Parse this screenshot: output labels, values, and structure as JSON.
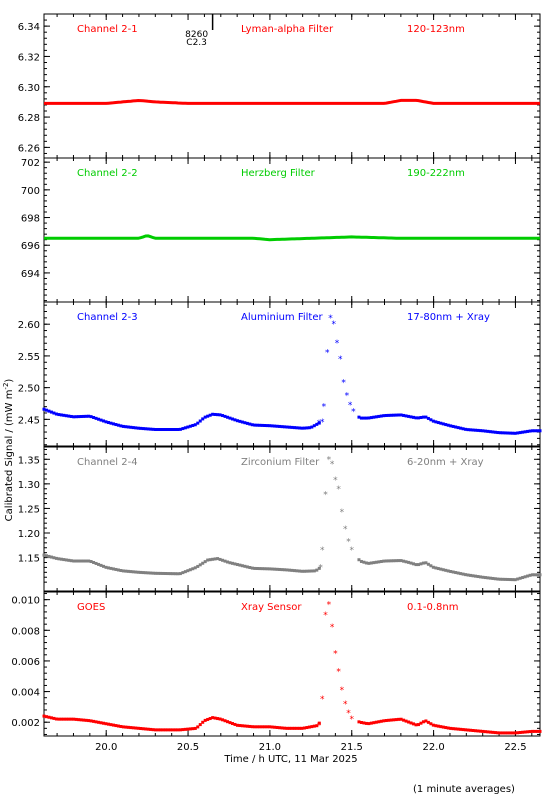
{
  "chart_data": {
    "type": "scatter",
    "xlabel": "Time / h UTC, 11 Mar 2025",
    "ylabel": "Calibrated Signal / (mW m",
    "ylabel_sup": "-2",
    "ylabel_close": ")",
    "footnote": "(1 minute averages)",
    "xlim": [
      19.62,
      22.65
    ],
    "xticks": [
      "20.0",
      "20.5",
      "21.0",
      "21.5",
      "22.0",
      "22.5"
    ],
    "xtick_values": [
      20.0,
      20.5,
      21.0,
      21.5,
      22.0,
      22.5
    ],
    "event_marker": {
      "x": 20.65,
      "line1": "8260",
      "line2": "C2.3"
    },
    "panels": [
      {
        "channel": "Channel 2-1",
        "filter": "Lyman-alpha Filter",
        "band": "120-123nm",
        "color": "#ff0000",
        "ylim": [
          6.253,
          6.348
        ],
        "yticks": [
          "6.26",
          "6.28",
          "6.30",
          "6.32",
          "6.34"
        ],
        "ytick_values": [
          6.26,
          6.28,
          6.3,
          6.32,
          6.34
        ],
        "marker_style": "line",
        "points": [
          [
            19.62,
            6.289
          ],
          [
            20.0,
            6.289
          ],
          [
            20.1,
            6.29
          ],
          [
            20.2,
            6.291
          ],
          [
            20.3,
            6.29
          ],
          [
            20.5,
            6.289
          ],
          [
            21.0,
            6.289
          ],
          [
            21.5,
            6.289
          ],
          [
            21.7,
            6.289
          ],
          [
            21.8,
            6.291
          ],
          [
            21.9,
            6.291
          ],
          [
            22.0,
            6.289
          ],
          [
            22.3,
            6.289
          ],
          [
            22.65,
            6.289
          ]
        ]
      },
      {
        "channel": "Channel 2-2",
        "filter": "Herzberg Filter",
        "band": "190-222nm",
        "color": "#00cc00",
        "ylim": [
          691.9,
          702.3
        ],
        "yticks": [
          "694",
          "696",
          "698",
          "700",
          "702"
        ],
        "ytick_values": [
          694,
          696,
          698,
          700,
          702
        ],
        "marker_style": "line",
        "points": [
          [
            19.62,
            696.5
          ],
          [
            20.2,
            696.5
          ],
          [
            20.25,
            696.7
          ],
          [
            20.3,
            696.5
          ],
          [
            20.9,
            696.5
          ],
          [
            21.0,
            696.4
          ],
          [
            21.5,
            696.6
          ],
          [
            21.8,
            696.5
          ],
          [
            22.0,
            696.5
          ],
          [
            22.65,
            696.5
          ]
        ]
      },
      {
        "channel": "Channel 2-3",
        "filter": "Aluminium Filter",
        "band": "17-80nm + Xray",
        "color": "#0000ff",
        "ylim": [
          2.408,
          2.635
        ],
        "yticks": [
          "2.45",
          "2.50",
          "2.55",
          "2.60"
        ],
        "ytick_values": [
          2.45,
          2.5,
          2.55,
          2.6
        ],
        "marker_style": "star",
        "points": [
          [
            19.62,
            2.466
          ],
          [
            19.7,
            2.458
          ],
          [
            19.8,
            2.454
          ],
          [
            19.9,
            2.455
          ],
          [
            20.0,
            2.446
          ],
          [
            20.1,
            2.439
          ],
          [
            20.2,
            2.436
          ],
          [
            20.3,
            2.434
          ],
          [
            20.45,
            2.434
          ],
          [
            20.55,
            2.442
          ],
          [
            20.6,
            2.453
          ],
          [
            20.65,
            2.458
          ],
          [
            20.7,
            2.457
          ],
          [
            20.8,
            2.448
          ],
          [
            20.9,
            2.441
          ],
          [
            21.0,
            2.44
          ],
          [
            21.1,
            2.438
          ],
          [
            21.2,
            2.436
          ],
          [
            21.25,
            2.437
          ],
          [
            21.3,
            2.444
          ],
          [
            21.32,
            2.446
          ],
          [
            21.33,
            2.47
          ],
          [
            21.35,
            2.555
          ],
          [
            21.37,
            2.61
          ],
          [
            21.39,
            2.6
          ],
          [
            21.41,
            2.57
          ],
          [
            21.43,
            2.545
          ],
          [
            21.45,
            2.508
          ],
          [
            21.47,
            2.488
          ],
          [
            21.49,
            2.473
          ],
          [
            21.51,
            2.462
          ],
          [
            21.55,
            2.452
          ],
          [
            21.6,
            2.452
          ],
          [
            21.7,
            2.456
          ],
          [
            21.8,
            2.457
          ],
          [
            21.9,
            2.452
          ],
          [
            21.95,
            2.454
          ],
          [
            22.0,
            2.447
          ],
          [
            22.1,
            2.44
          ],
          [
            22.2,
            2.434
          ],
          [
            22.3,
            2.432
          ],
          [
            22.4,
            2.429
          ],
          [
            22.5,
            2.428
          ],
          [
            22.6,
            2.432
          ],
          [
            22.65,
            2.432
          ]
        ]
      },
      {
        "channel": "Channel 2-4",
        "filter": "Zirconium Filter",
        "band": "6-20nm + Xray",
        "color": "#808080",
        "ylim": [
          1.082,
          1.375
        ],
        "yticks": [
          "1.15",
          "1.20",
          "1.25",
          "1.30",
          "1.35"
        ],
        "ytick_values": [
          1.15,
          1.2,
          1.25,
          1.3,
          1.35
        ],
        "marker_style": "star",
        "points": [
          [
            19.62,
            1.155
          ],
          [
            19.7,
            1.148
          ],
          [
            19.8,
            1.143
          ],
          [
            19.9,
            1.143
          ],
          [
            20.0,
            1.13
          ],
          [
            20.1,
            1.123
          ],
          [
            20.2,
            1.12
          ],
          [
            20.3,
            1.118
          ],
          [
            20.45,
            1.117
          ],
          [
            20.55,
            1.13
          ],
          [
            20.62,
            1.145
          ],
          [
            20.68,
            1.148
          ],
          [
            20.75,
            1.14
          ],
          [
            20.9,
            1.128
          ],
          [
            21.0,
            1.127
          ],
          [
            21.1,
            1.125
          ],
          [
            21.2,
            1.122
          ],
          [
            21.28,
            1.123
          ],
          [
            21.31,
            1.13
          ],
          [
            21.32,
            1.165
          ],
          [
            21.34,
            1.278
          ],
          [
            21.36,
            1.35
          ],
          [
            21.38,
            1.34
          ],
          [
            21.4,
            1.308
          ],
          [
            21.42,
            1.29
          ],
          [
            21.44,
            1.243
          ],
          [
            21.46,
            1.208
          ],
          [
            21.48,
            1.183
          ],
          [
            21.5,
            1.165
          ],
          [
            21.55,
            1.143
          ],
          [
            21.6,
            1.138
          ],
          [
            21.7,
            1.143
          ],
          [
            21.8,
            1.144
          ],
          [
            21.85,
            1.14
          ],
          [
            21.9,
            1.135
          ],
          [
            21.95,
            1.14
          ],
          [
            22.0,
            1.13
          ],
          [
            22.1,
            1.122
          ],
          [
            22.2,
            1.115
          ],
          [
            22.3,
            1.11
          ],
          [
            22.4,
            1.106
          ],
          [
            22.5,
            1.105
          ],
          [
            22.6,
            1.115
          ],
          [
            22.65,
            1.115
          ]
        ]
      },
      {
        "channel": "GOES",
        "filter": "Xray Sensor",
        "band": "0.1-0.8nm",
        "color": "#ff0000",
        "ylim": [
          0.0011,
          0.0105
        ],
        "yticks": [
          "0.002",
          "0.004",
          "0.006",
          "0.008",
          "0.010"
        ],
        "ytick_values": [
          0.002,
          0.004,
          0.006,
          0.008,
          0.01
        ],
        "marker_style": "star",
        "points": [
          [
            19.62,
            0.0024
          ],
          [
            19.7,
            0.0022
          ],
          [
            19.8,
            0.0022
          ],
          [
            19.9,
            0.0021
          ],
          [
            20.0,
            0.0019
          ],
          [
            20.1,
            0.0017
          ],
          [
            20.2,
            0.0016
          ],
          [
            20.3,
            0.0015
          ],
          [
            20.45,
            0.0015
          ],
          [
            20.55,
            0.0016
          ],
          [
            20.6,
            0.0021
          ],
          [
            20.65,
            0.0023
          ],
          [
            20.7,
            0.0022
          ],
          [
            20.8,
            0.0018
          ],
          [
            20.9,
            0.0017
          ],
          [
            21.0,
            0.0017
          ],
          [
            21.1,
            0.0016
          ],
          [
            21.2,
            0.0016
          ],
          [
            21.3,
            0.0018
          ],
          [
            21.32,
            0.0035
          ],
          [
            21.34,
            0.009
          ],
          [
            21.36,
            0.0097
          ],
          [
            21.38,
            0.0082
          ],
          [
            21.4,
            0.0065
          ],
          [
            21.42,
            0.0053
          ],
          [
            21.44,
            0.0041
          ],
          [
            21.46,
            0.0032
          ],
          [
            21.48,
            0.0026
          ],
          [
            21.5,
            0.0022
          ],
          [
            21.55,
            0.002
          ],
          [
            21.6,
            0.0019
          ],
          [
            21.7,
            0.0021
          ],
          [
            21.8,
            0.0022
          ],
          [
            21.9,
            0.0018
          ],
          [
            21.95,
            0.0021
          ],
          [
            22.0,
            0.0018
          ],
          [
            22.1,
            0.0016
          ],
          [
            22.2,
            0.0015
          ],
          [
            22.3,
            0.0014
          ],
          [
            22.4,
            0.0013
          ],
          [
            22.5,
            0.0013
          ],
          [
            22.6,
            0.0014
          ],
          [
            22.65,
            0.0014
          ]
        ]
      }
    ]
  }
}
